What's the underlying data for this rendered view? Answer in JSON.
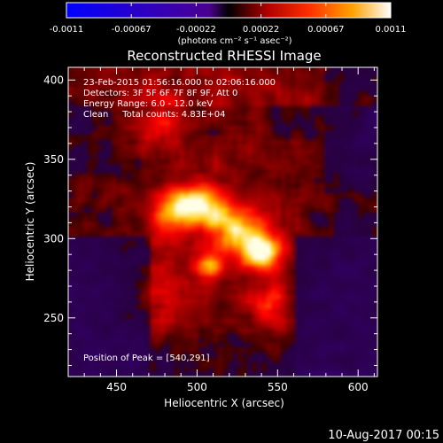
{
  "chart_data": {
    "type": "heatmap",
    "title": "Reconstructed RHESSI Image",
    "xlabel": "Heliocentric X (arcsec)",
    "ylabel": "Heliocentric Y (arcsec)",
    "xlim": [
      420,
      612
    ],
    "ylim": [
      213,
      408
    ],
    "xticks": [
      450,
      500,
      550,
      600
    ],
    "yticks": [
      250,
      300,
      350,
      400
    ],
    "colorbar": {
      "range": [
        -0.0011,
        0.0011
      ],
      "tick_labels": [
        "-0.0011",
        "-0.00067",
        "-0.00022",
        "0.00022",
        "0.00067",
        "0.0011"
      ],
      "unit_label": "(photons cm⁻² s⁻¹ asec⁻²)"
    },
    "annotations": [
      "23-Feb-2015 01:56:16.000 to 02:06:16.000",
      "Detectors: 3F 5F 6F 7F 8F 9F, Att 0",
      "Energy Range: 6.0 - 12.0 keV",
      "Clean     Total counts: 4.83E+04"
    ],
    "peak_label": "Position of Peak = [540,291]",
    "peak_position": [
      540,
      291
    ],
    "sources": [
      {
        "x": 540,
        "y": 291,
        "amp": 1.0,
        "sx": 9,
        "sy": 8
      },
      {
        "x": 499,
        "y": 322,
        "amp": 0.9,
        "sx": 11,
        "sy": 8
      },
      {
        "x": 523,
        "y": 307,
        "amp": 0.7,
        "sx": 13,
        "sy": 10
      },
      {
        "x": 508,
        "y": 283,
        "amp": 0.55,
        "sx": 7,
        "sy": 6
      },
      {
        "x": 482,
        "y": 313,
        "amp": 0.45,
        "sx": 9,
        "sy": 12
      },
      {
        "x": 545,
        "y": 258,
        "amp": 0.45,
        "sx": 10,
        "sy": 10
      },
      {
        "x": 475,
        "y": 372,
        "amp": 0.35,
        "sx": 14,
        "sy": 10
      },
      {
        "x": 478,
        "y": 262,
        "amp": 0.3,
        "sx": 14,
        "sy": 14
      }
    ],
    "cmap": "red-temperature (blue to purple for negative, red to yellow to white for positive)"
  },
  "timestamp": "10-Aug-2017 00:15"
}
